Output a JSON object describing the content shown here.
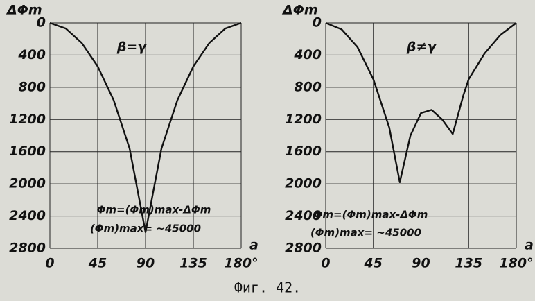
{
  "caption": "Фиг. 42.",
  "chart_data": [
    {
      "type": "line",
      "y_label": "ΔΦm",
      "x_label": "a",
      "x": [
        0,
        15,
        30,
        45,
        60,
        75,
        90,
        105,
        120,
        135,
        150,
        165,
        180
      ],
      "values": [
        0,
        70,
        250,
        540,
        960,
        1560,
        2600,
        1560,
        960,
        540,
        250,
        70,
        0
      ],
      "color": "#111111",
      "xlim": [
        0,
        180
      ],
      "xticks": [
        0,
        45,
        90,
        135,
        {
          "value": 180,
          "label": "180°"
        }
      ],
      "ylim": [
        0,
        2800
      ],
      "yticks": [
        0,
        400,
        800,
        1200,
        1600,
        2000,
        2400,
        2800
      ],
      "y_inverted": true,
      "grid": true,
      "annotations": [
        "β=γ",
        "Φm=(Φm)max-ΔΦm",
        "(Φm)max= ~45000"
      ]
    },
    {
      "type": "line",
      "y_label": "ΔΦm",
      "x_label": "a",
      "x": [
        0,
        15,
        30,
        45,
        60,
        70,
        80,
        90,
        100,
        110,
        120,
        130,
        135,
        150,
        165,
        180
      ],
      "values": [
        0,
        80,
        300,
        700,
        1300,
        1980,
        1400,
        1120,
        1080,
        1200,
        1380,
        900,
        700,
        380,
        150,
        0
      ],
      "color": "#111111",
      "xlim": [
        0,
        180
      ],
      "xticks": [
        0,
        45,
        90,
        135,
        {
          "value": 180,
          "label": "180°"
        }
      ],
      "ylim": [
        0,
        2800
      ],
      "yticks": [
        0,
        400,
        800,
        1200,
        1600,
        2000,
        2400,
        2800
      ],
      "y_inverted": true,
      "grid": true,
      "annotations": [
        "β≠γ",
        "Φm=(Φm)max-ΔΦm",
        "(Φm)max= ~45000"
      ]
    }
  ]
}
